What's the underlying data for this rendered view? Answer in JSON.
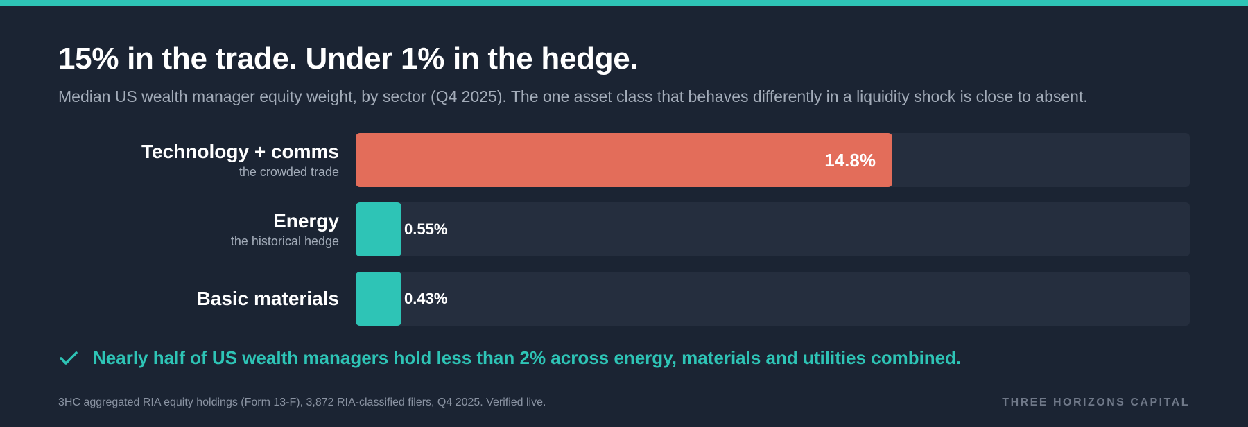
{
  "title": "15% in the trade. Under 1% in the hedge.",
  "subtitle": "Median US wealth manager equity weight, by sector (Q4 2025). The one asset class that behaves differently in a liquidity shock is close to absent.",
  "chart_data": {
    "type": "bar",
    "orientation": "horizontal",
    "categories": [
      "Technology + comms",
      "Energy",
      "Basic materials"
    ],
    "category_notes": [
      "the crowded trade",
      "the historical hedge",
      ""
    ],
    "values": [
      14.8,
      0.55,
      0.43
    ],
    "value_labels": [
      "14.8%",
      "0.55%",
      "0.43%"
    ],
    "xlim": [
      0,
      23
    ],
    "unit": "%",
    "colors": [
      "#e36d5a",
      "#2ec4b6",
      "#2ec4b6"
    ],
    "track_color": "#252e3e"
  },
  "note": {
    "icon": "check-icon",
    "text": "Nearly half of US wealth managers hold less than 2% across energy, materials and utilities combined."
  },
  "footer": {
    "source": "3HC aggregated RIA equity holdings (Form 13-F), 3,872 RIA-classified filers, Q4 2025. Verified live.",
    "brand": "THREE HORIZONS CAPITAL"
  },
  "colors": {
    "background": "#1b2433",
    "accent": "#2ec4b6",
    "highlight": "#e36d5a"
  }
}
